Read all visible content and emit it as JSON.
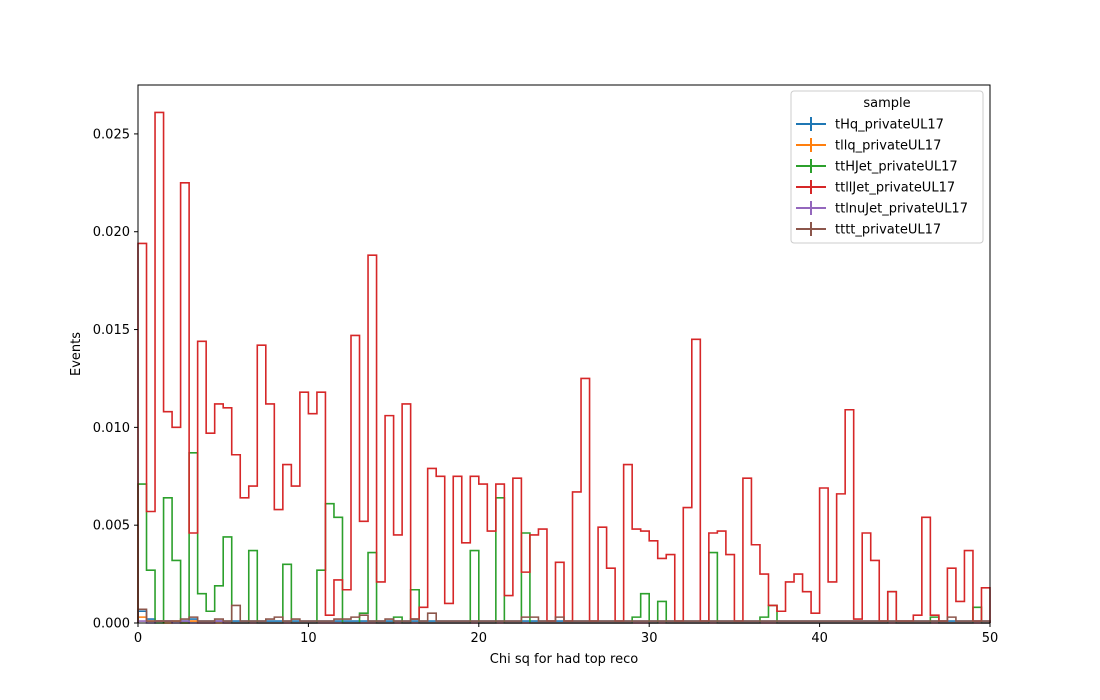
{
  "chart_data": {
    "type": "histogram",
    "xlabel": "Chi sq for had top reco",
    "ylabel": "Events",
    "xlim": [
      0,
      50
    ],
    "ylim": [
      0,
      0.0275
    ],
    "xticks": [
      "0",
      "10",
      "20",
      "30",
      "40",
      "50"
    ],
    "yticks": [
      "0.000",
      "0.005",
      "0.010",
      "0.015",
      "0.020",
      "0.025"
    ],
    "grid": false,
    "legend_title": "sample",
    "legend_position": "top-right",
    "bin_edges": {
      "start": 0,
      "stop": 50,
      "count": 100
    },
    "series": [
      {
        "name": "tHq_privateUL17",
        "color": "#1f77b4",
        "values": [
          0.0006,
          0.0002,
          0.0001,
          0.0001,
          0.0001,
          0.0001,
          0.0002,
          0.0001,
          0.0001,
          0.0001,
          0.0001,
          0.0001,
          0.0001,
          0.0001,
          0.0001,
          0.0001,
          0.0001,
          0.0001,
          0.0001,
          0.0001,
          0.0001,
          0.0001,
          0.0001,
          0.0001,
          0.0001,
          0.0001,
          0.0001,
          0.0001,
          0.0001,
          0.0001,
          0.0001,
          0.0001,
          0.0001,
          0.0001,
          0.0001,
          0.0001,
          0.0001,
          0.0001,
          0.0001,
          0.0001,
          0.0001,
          0.0001,
          0.0001,
          0.0001,
          0.0001,
          0.0001,
          0.0001,
          0.0001,
          0.0001,
          0.0001,
          0.0001,
          0.0001,
          0.0001,
          0.0001,
          0.0001,
          0.0001,
          0.0001,
          0.0001,
          0.0001,
          0.0001,
          0.0001,
          0.0001,
          0.0001,
          0.0001,
          0.0001,
          0.0001,
          0.0001,
          0.0001,
          0.0001,
          0.0001,
          0.0001,
          0.0001,
          0.0001,
          0.0001,
          0.0001,
          0.0001,
          0.0001,
          0.0001,
          0.0001,
          0.0001,
          0.0001,
          0.0001,
          0.0001,
          0.0001,
          0.0001,
          0.0001,
          0.0001,
          0.0001,
          0.0001,
          0.0001,
          0.0001,
          0.0001,
          0.0001,
          0.0001,
          0.0001,
          0.0001,
          0.0001,
          0.0001,
          0.0001,
          0.0001
        ]
      },
      {
        "name": "tllq_privateUL17",
        "color": "#ff7f0e",
        "values": [
          0.0003,
          0.0001,
          0.0001,
          0,
          0.0001,
          0,
          0.0001,
          0,
          0,
          0,
          0,
          0,
          0,
          0,
          0,
          0,
          0,
          0,
          0,
          0,
          0,
          0,
          0,
          0,
          0,
          0,
          0,
          0,
          0,
          0,
          0,
          0,
          0,
          0,
          0,
          0,
          0,
          0,
          0,
          0,
          0,
          0,
          0,
          0,
          0,
          0,
          0,
          0,
          0,
          0,
          0,
          0,
          0,
          0,
          0,
          0,
          0,
          0,
          0,
          0,
          0,
          0,
          0,
          0,
          0,
          0,
          0,
          0,
          0,
          0,
          0,
          0,
          0,
          0,
          0,
          0,
          0,
          0,
          0,
          0,
          0,
          0,
          0,
          0,
          0,
          0,
          0,
          0,
          0,
          0,
          0,
          0,
          0,
          0,
          0,
          0,
          0,
          0,
          0,
          0
        ]
      },
      {
        "name": "ttHJet_privateUL17",
        "color": "#2ca02c",
        "values": [
          0.0071,
          0.0027,
          0,
          0.0064,
          0.0032,
          0,
          0.0087,
          0.0015,
          0.0006,
          0.0019,
          0.0044,
          0,
          0,
          0.0037,
          0,
          0,
          0,
          0.003,
          0,
          0,
          0,
          0.0027,
          0.0061,
          0.0054,
          0,
          0,
          0.0005,
          0.0036,
          0,
          0,
          0.0003,
          0,
          0.0017,
          0,
          0,
          0,
          0,
          0,
          0,
          0.0037,
          0,
          0,
          0.0064,
          0,
          0,
          0.0046,
          0,
          0,
          0,
          0,
          0,
          0,
          0,
          0,
          0,
          0,
          0,
          0,
          0.0003,
          0.0015,
          0,
          0.0011,
          0,
          0,
          0,
          0,
          0,
          0.0036,
          0,
          0,
          0,
          0,
          0,
          0.0003,
          0.0009,
          0,
          0,
          0,
          0,
          0,
          0,
          0,
          0,
          0,
          0,
          0,
          0,
          0,
          0.0016,
          0,
          0,
          0,
          0,
          0.0003,
          0,
          0,
          0,
          0,
          0.0008,
          0
        ]
      },
      {
        "name": "ttllJet_privateUL17",
        "color": "#d62728",
        "values": [
          0.0194,
          0.0057,
          0.0261,
          0.0108,
          0.01,
          0.0225,
          0.0046,
          0.0144,
          0.0097,
          0.0112,
          0.011,
          0.0086,
          0.0064,
          0.007,
          0.0142,
          0.0112,
          0.0058,
          0.0081,
          0.007,
          0.0118,
          0.0107,
          0.0118,
          0.0004,
          0.0022,
          0.0017,
          0.0147,
          0.0052,
          0.0188,
          0.0021,
          0.0106,
          0.0045,
          0.0112,
          0.0002,
          0.0008,
          0.0079,
          0.0075,
          0.001,
          0.0075,
          0.0041,
          0.0075,
          0.0071,
          0.0047,
          0.0071,
          0.0014,
          0.0074,
          0.0026,
          0.0045,
          0.0048,
          0.0001,
          0.0031,
          0.0001,
          0.0067,
          0.0125,
          0.0001,
          0.0049,
          0.0028,
          0.0001,
          0.0081,
          0.0048,
          0.0047,
          0.0042,
          0.0033,
          0.0035,
          0.0001,
          0.0059,
          0.0145,
          0.0001,
          0.0046,
          0.0047,
          0.0035,
          0.0001,
          0.0074,
          0.004,
          0.0025,
          0.0009,
          0.0006,
          0.0021,
          0.0025,
          0.0016,
          0.0005,
          0.0069,
          0.0021,
          0.0066,
          0.0109,
          0.0002,
          0.0046,
          0.0032,
          0.0001,
          0.0016,
          0.0001,
          0.0001,
          0.0004,
          0.0054,
          0.0004,
          0.0001,
          0.0028,
          0.0011,
          0.0037,
          0.0001,
          0.0018
        ]
      },
      {
        "name": "ttlnuJet_privateUL17",
        "color": "#9467bd",
        "values": [
          0.0001,
          0,
          0.0001,
          0.0001,
          0,
          0.0001,
          0,
          0,
          0,
          0.0001,
          0,
          0,
          0,
          0,
          0,
          0,
          0,
          0,
          0,
          0,
          0,
          0,
          0,
          0,
          0,
          0,
          0,
          0,
          0,
          0,
          0,
          0,
          0,
          0,
          0,
          0,
          0,
          0,
          0,
          0,
          0,
          0,
          0,
          0,
          0,
          0,
          0,
          0,
          0,
          0,
          0,
          0,
          0,
          0,
          0,
          0,
          0,
          0,
          0,
          0,
          0,
          0,
          0,
          0,
          0,
          0,
          0,
          0,
          0,
          0,
          0,
          0,
          0,
          0,
          0,
          0,
          0,
          0,
          0,
          0,
          0,
          0,
          0,
          0,
          0,
          0,
          0,
          0,
          0,
          0,
          0,
          0,
          0,
          0,
          0,
          0,
          0,
          0,
          0,
          0
        ]
      },
      {
        "name": "tttt_privateUL17",
        "color": "#8c564b",
        "values": [
          0.0007,
          0.0001,
          0.0001,
          0.0001,
          0.0001,
          0.0002,
          0.0003,
          0.0001,
          0.0001,
          0.0002,
          0.0001,
          0.0009,
          0.0001,
          0.0001,
          0.0001,
          0.0002,
          0.0003,
          0.0001,
          0.0002,
          0.0001,
          0.0001,
          0.0001,
          0.0001,
          0.0002,
          0.0002,
          0.0003,
          0.0004,
          0.0001,
          0.0001,
          0.0002,
          0.0001,
          0.0001,
          0.0002,
          0.0001,
          0.0005,
          0.0001,
          0.0001,
          0.0001,
          0.0001,
          0.0001,
          0.0001,
          0.0001,
          0.0001,
          0.0001,
          0.0001,
          0.0003,
          0.0003,
          0.0001,
          0.0001,
          0.0003,
          0.0001,
          0.0001,
          0.0001,
          0.0001,
          0.0001,
          0.0001,
          0.0001,
          0.0001,
          0.0001,
          0.0001,
          0.0001,
          0.0001,
          0.0001,
          0.0001,
          0.0001,
          0.0001,
          0.0001,
          0.0001,
          0.0001,
          0.0001,
          0.0001,
          0.0001,
          0.0001,
          0.0001,
          0.0001,
          0.0001,
          0.0001,
          0.0001,
          0.0001,
          0.0001,
          0.0001,
          0.0001,
          0.0001,
          0.0001,
          0.0001,
          0.0001,
          0.0001,
          0.0001,
          0.0001,
          0.0001,
          0.0001,
          0.0001,
          0.0001,
          0.0001,
          0.0001,
          0.0003,
          0.0001,
          0.0001,
          0.0001,
          0.0001
        ]
      }
    ]
  }
}
